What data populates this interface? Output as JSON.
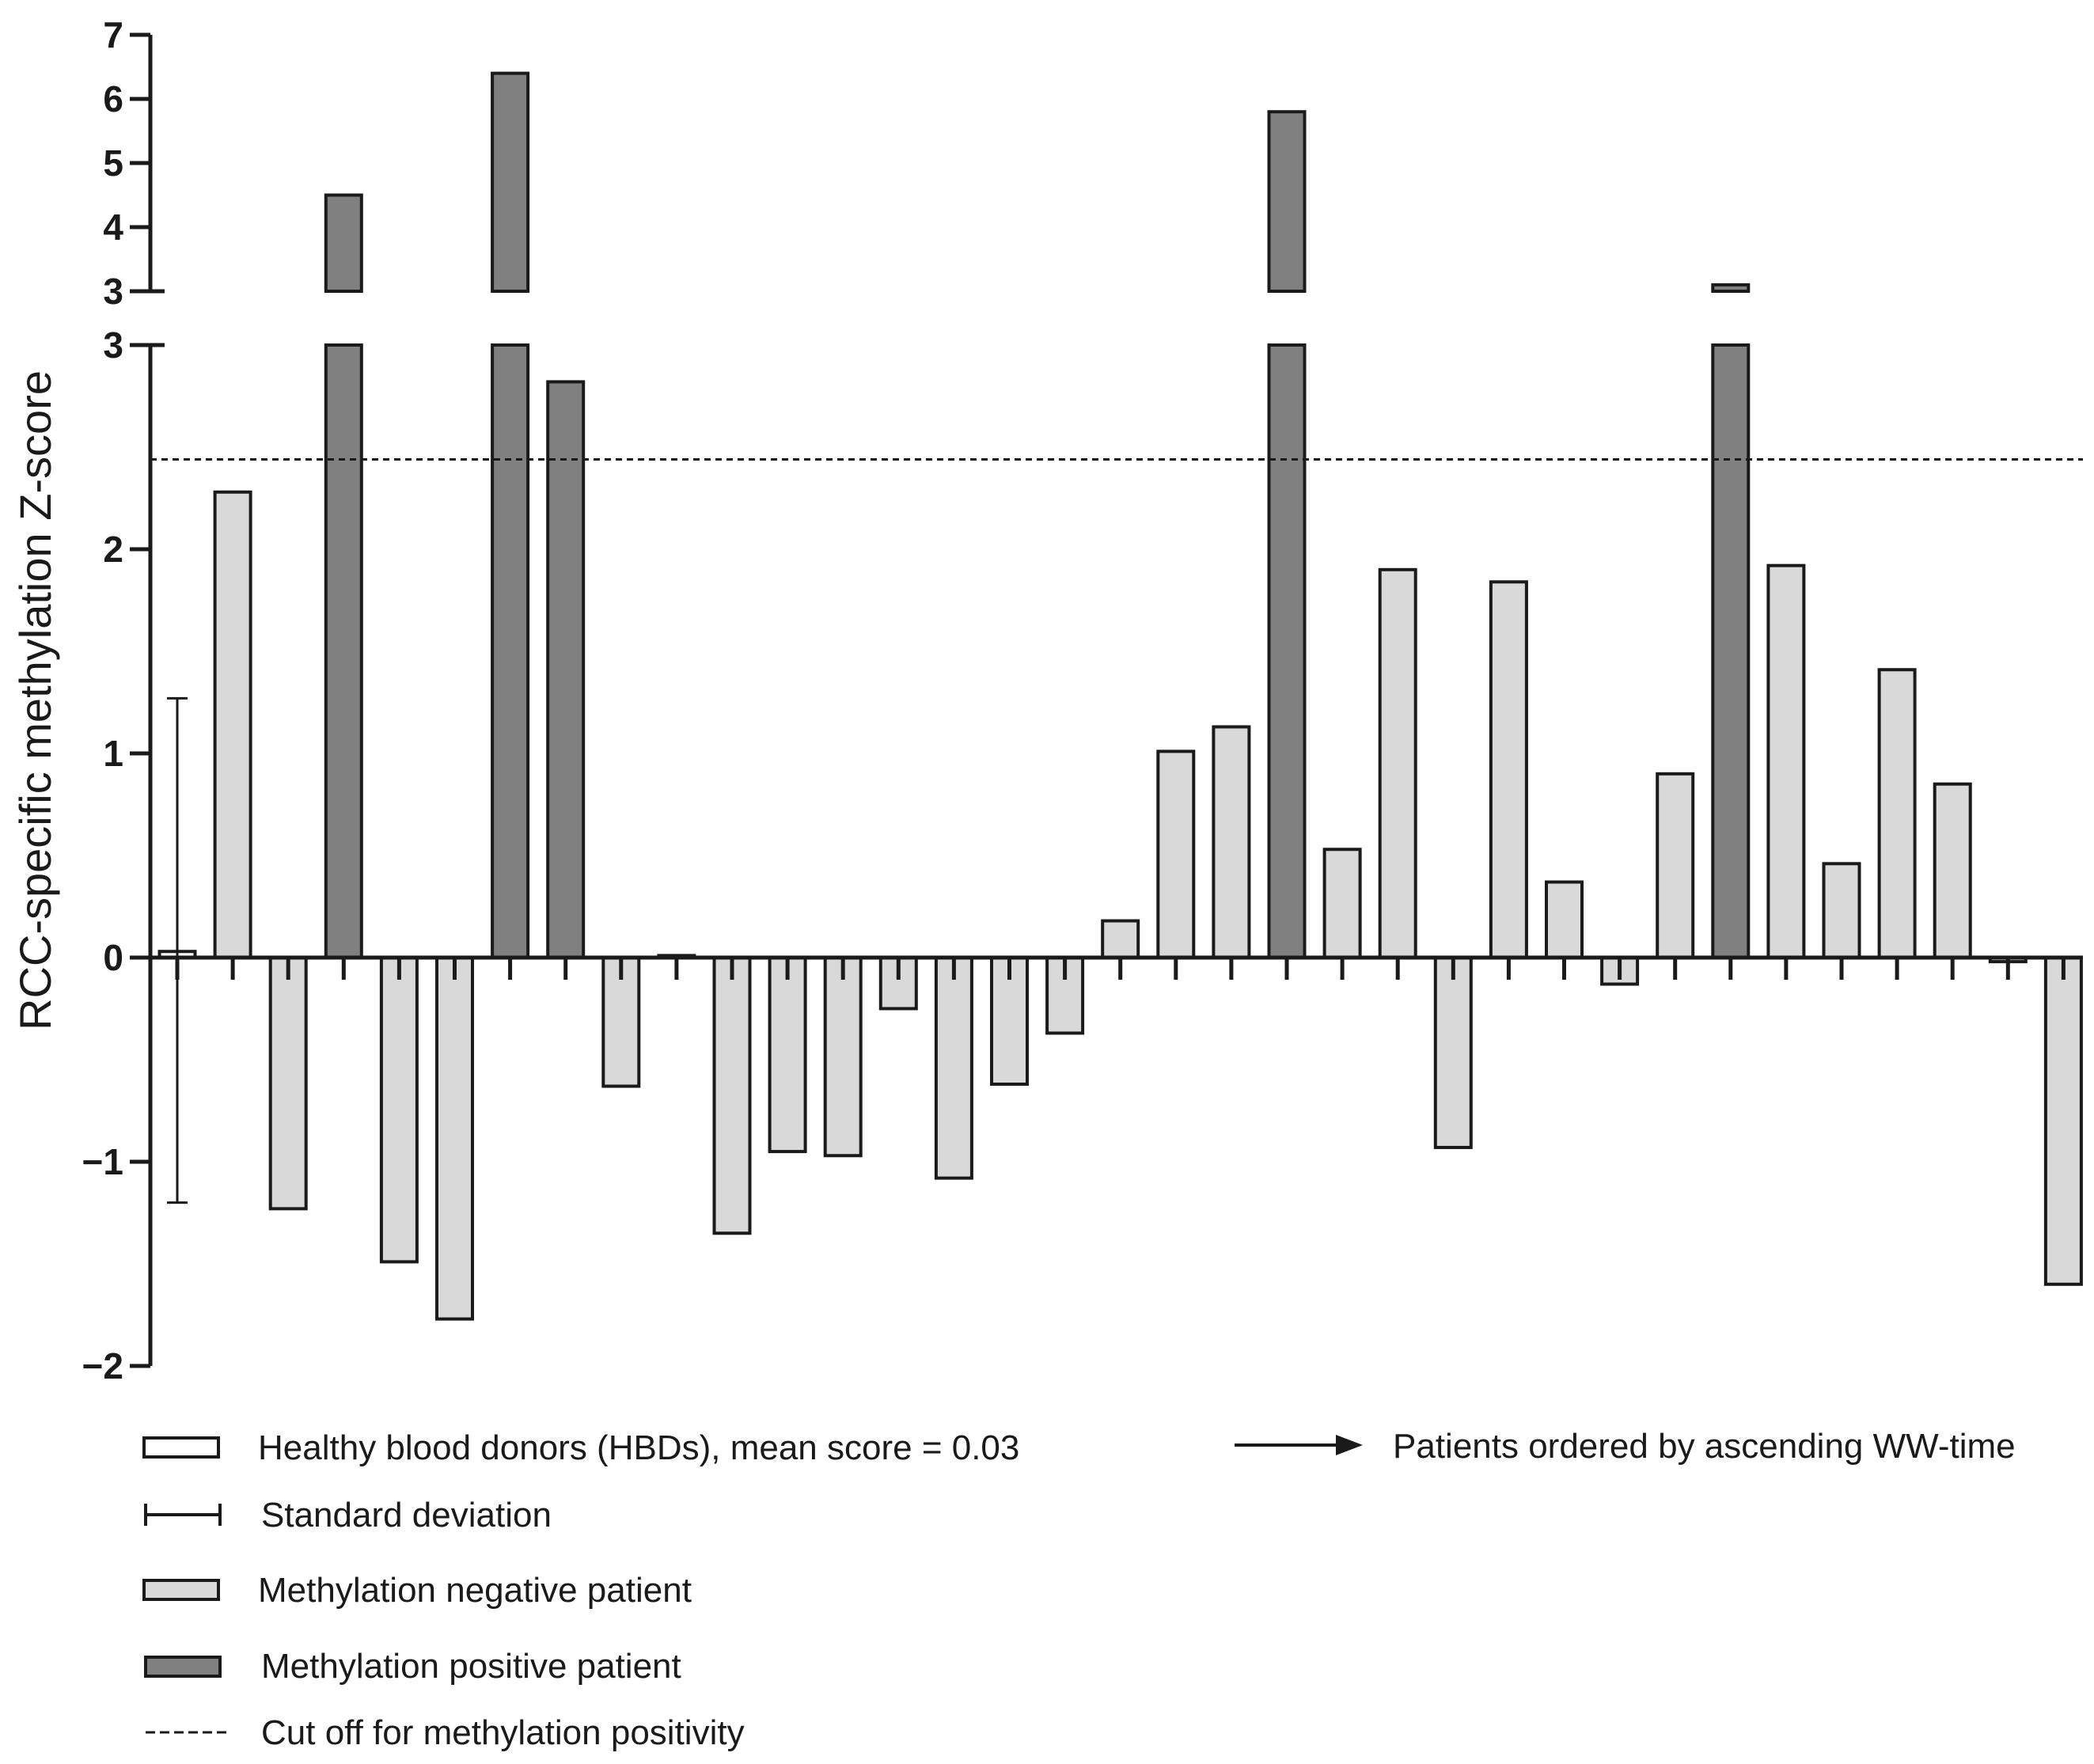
{
  "chart_data": {
    "type": "bar",
    "ylabel": "RCC-specific methylation Z-score",
    "axis_break": {
      "lower_range": [
        -2,
        3
      ],
      "upper_range": [
        3,
        7
      ]
    },
    "lower_ticks": [
      "-2",
      "-1",
      "0",
      "1",
      "2",
      "3"
    ],
    "upper_ticks": [
      "3",
      "4",
      "5",
      "6",
      "7"
    ],
    "cutoff_value": 2.44,
    "hbd": {
      "mean": 0.03,
      "sd_low": -1.2,
      "sd_high": 1.27
    },
    "values": [
      2.28,
      -1.23,
      4.5,
      -1.49,
      -1.77,
      6.4,
      2.82,
      -0.63,
      0.01,
      -1.35,
      -0.95,
      -0.97,
      -0.25,
      -1.08,
      -0.62,
      -0.37,
      0.18,
      1.01,
      1.13,
      5.8,
      0.53,
      1.9,
      -0.93,
      1.84,
      0.37,
      -0.13,
      0.9,
      3.1,
      1.92,
      0.46,
      1.41,
      0.85,
      -0.02,
      -1.6
    ],
    "status": [
      "neg",
      "neg",
      "pos",
      "neg",
      "neg",
      "pos",
      "pos",
      "neg",
      "neg",
      "neg",
      "neg",
      "neg",
      "neg",
      "neg",
      "neg",
      "neg",
      "neg",
      "neg",
      "neg",
      "pos",
      "neg",
      "neg",
      "neg",
      "neg",
      "neg",
      "neg",
      "neg",
      "pos",
      "neg",
      "neg",
      "neg",
      "neg",
      "neg",
      "neg"
    ]
  },
  "colors": {
    "positive": "#808080",
    "negative": "#d9d9d9",
    "hbd": "#ffffff",
    "stroke": "#1a1a1a"
  },
  "legend": {
    "hbd": "Healthy blood donors (HBDs), mean score = 0.03",
    "sd": "Standard deviation",
    "negative": "Methylation negative patient",
    "positive": "Methylation positive patient",
    "cutoff": "Cut off for methylation positivity",
    "order": "Patients ordered by ascending WW-time"
  }
}
